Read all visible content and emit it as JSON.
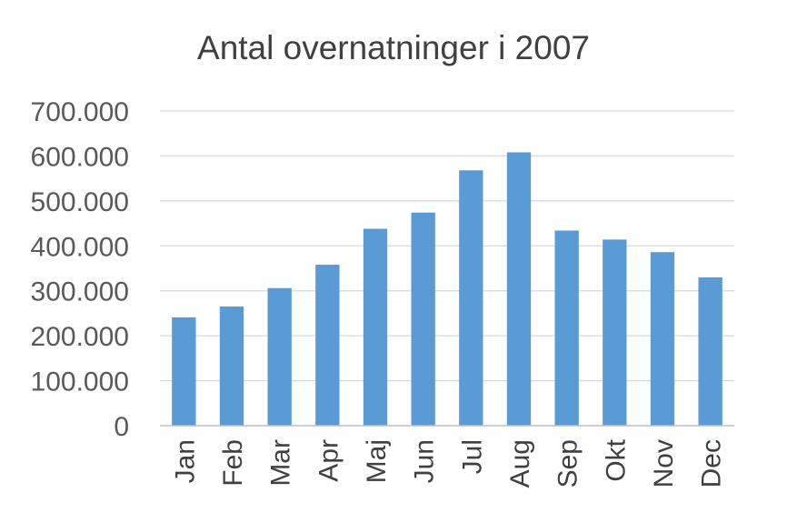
{
  "chart_data": {
    "type": "bar",
    "title": "Antal overnatninger i 2007",
    "xlabel": "",
    "ylabel": "",
    "categories": [
      "Jan",
      "Feb",
      "Mar",
      "Apr",
      "Maj",
      "Jun",
      "Jul",
      "Aug",
      "Sep",
      "Okt",
      "Nov",
      "Dec"
    ],
    "values": [
      241000,
      265000,
      306000,
      358000,
      438000,
      474000,
      568000,
      608000,
      434000,
      414000,
      386000,
      330000
    ],
    "ylim": [
      0,
      700000
    ],
    "yticks": [
      0,
      100000,
      200000,
      300000,
      400000,
      500000,
      600000,
      700000
    ],
    "ytick_labels": [
      "0",
      "100.000",
      "200.000",
      "300.000",
      "400.000",
      "500.000",
      "600.000",
      "700.000"
    ],
    "grid": true,
    "legend": "none",
    "bar_color": "#5b9bd5",
    "grid_color": "#d9d9d9",
    "axis_color": "#bfbfbf"
  }
}
